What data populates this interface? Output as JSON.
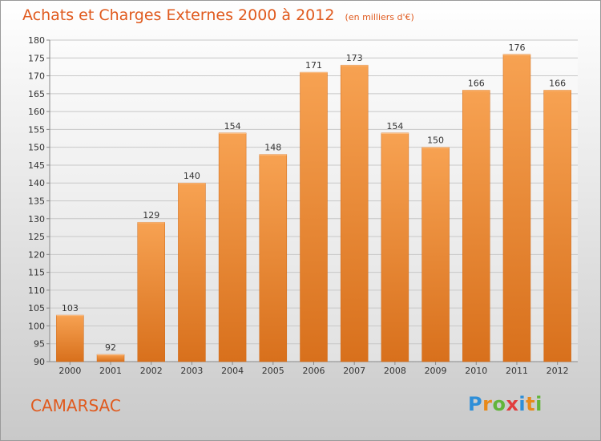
{
  "chart_data": {
    "type": "bar",
    "title": "Achats et Charges Externes 2000 à 2012",
    "subtitle": "(en milliers d'€)",
    "categories": [
      "2000",
      "2001",
      "2002",
      "2003",
      "2004",
      "2005",
      "2006",
      "2007",
      "2008",
      "2009",
      "2010",
      "2011",
      "2012"
    ],
    "values": [
      103,
      92,
      129,
      140,
      154,
      148,
      171,
      173,
      154,
      150,
      166,
      176,
      166
    ],
    "ylim": [
      90,
      180
    ],
    "yticks": [
      90,
      95,
      100,
      105,
      110,
      115,
      120,
      125,
      130,
      135,
      140,
      145,
      150,
      155,
      160,
      165,
      170,
      175,
      180
    ],
    "grid": true,
    "bar_color": "#f08a2e"
  },
  "commune": "CAMARSAC",
  "logo": {
    "letters": [
      "P",
      "r",
      "o",
      "x",
      "i",
      "t",
      "i"
    ],
    "colors": [
      "#2f8fd8",
      "#e88a1a",
      "#62b53a",
      "#e13c3c",
      "#2f8fd8",
      "#e88a1a",
      "#62b53a"
    ]
  }
}
